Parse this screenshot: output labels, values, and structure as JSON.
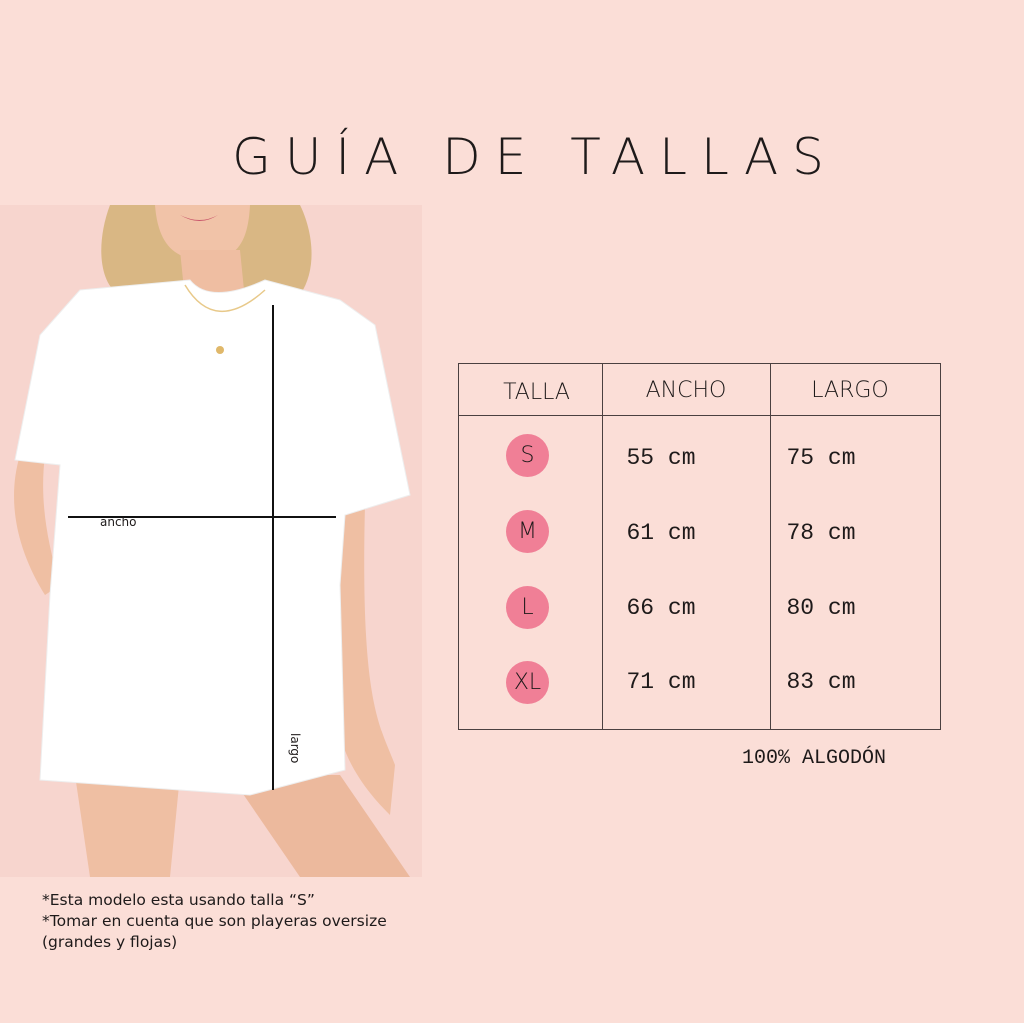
{
  "title": "GUÍA DE TALLAS",
  "photo": {
    "ancho_label": "ancho",
    "largo_label": "largo"
  },
  "table": {
    "headers": [
      "TALLA",
      "ANCHO",
      "LARGO"
    ],
    "rows": [
      {
        "talla": "S",
        "ancho": "55 cm",
        "largo": "75 cm"
      },
      {
        "talla": "M",
        "ancho": "61 cm",
        "largo": "78 cm"
      },
      {
        "talla": "L",
        "ancho": "66 cm",
        "largo": "80 cm"
      },
      {
        "talla": "XL",
        "ancho": "71 cm",
        "largo": "83 cm"
      }
    ],
    "badge_color": "#f07f96"
  },
  "material": "100% ALGODÓN",
  "notes": [
    "*Esta modelo esta usando talla “S”",
    "*Tomar en cuenta que son playeras oversize",
    "(grandes y flojas)"
  ]
}
